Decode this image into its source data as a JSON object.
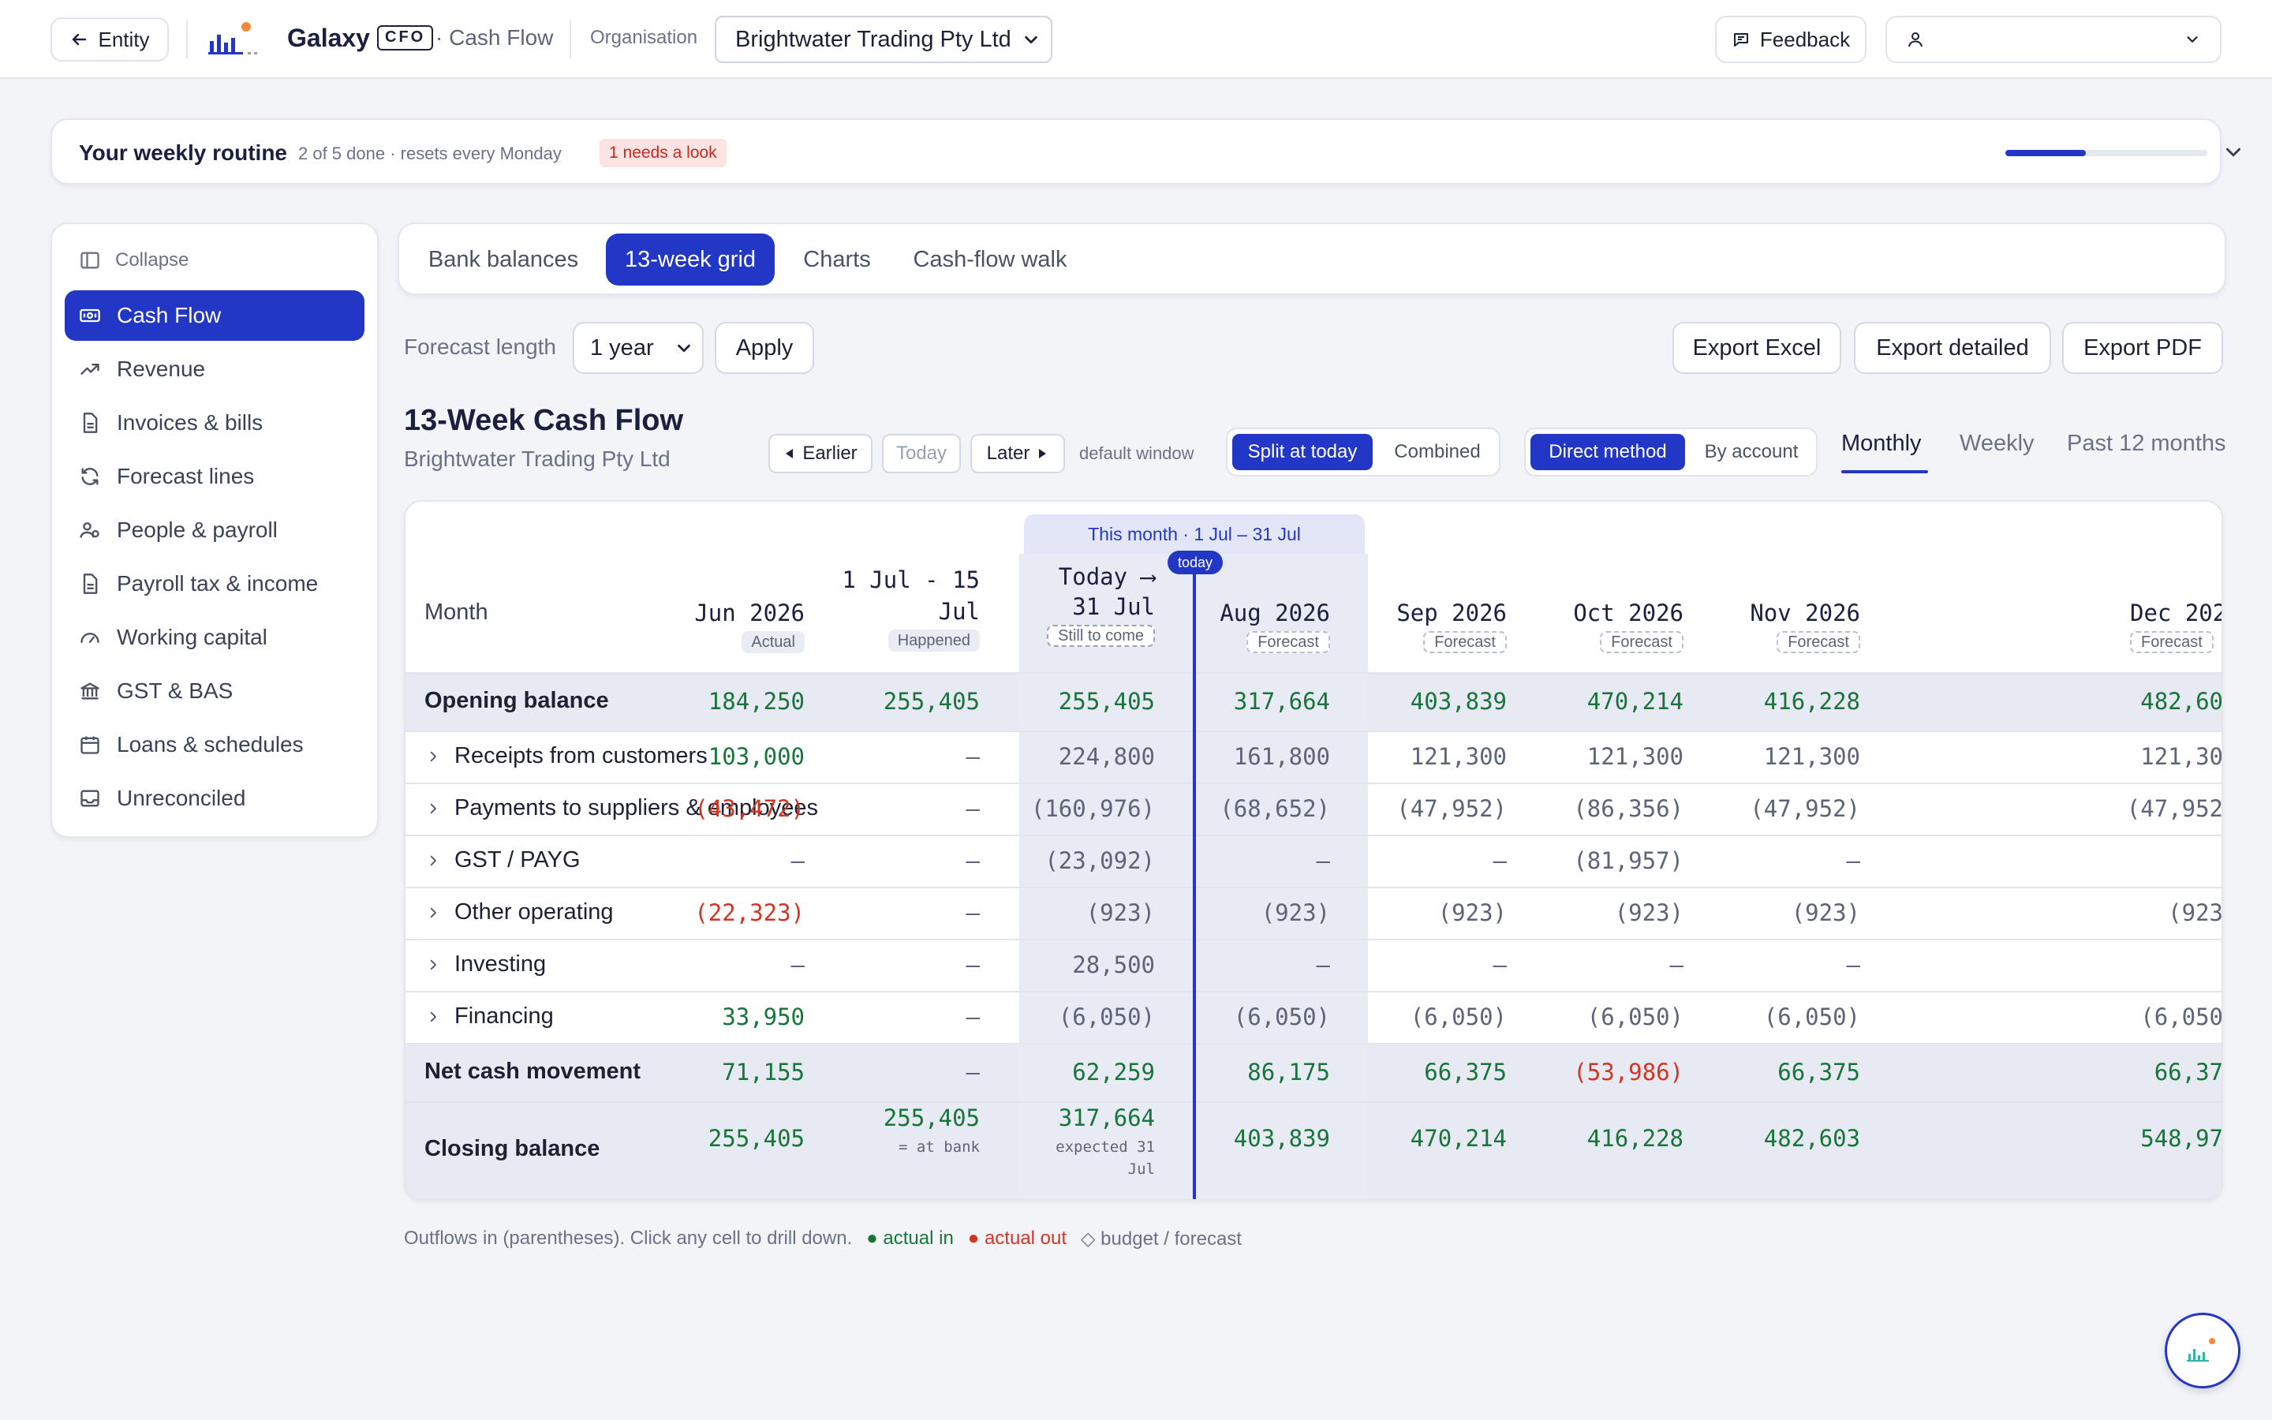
{
  "topbar": {
    "entity_label": "Entity",
    "brand": "Galaxy",
    "badge": "CFO",
    "crumb": "· Cash Flow",
    "org_label": "Organisation",
    "org_value": "Brightwater Trading Pty Ltd",
    "feedback_label": "Feedback"
  },
  "routine": {
    "title": "Your weekly routine",
    "subtitle": "2 of 5 done · resets every Monday",
    "badge": "1 needs a look",
    "progress_fraction": 0.4
  },
  "sidebar": {
    "collapse_label": "Collapse",
    "items": [
      {
        "label": "Cash Flow",
        "icon": "banknote-icon",
        "active": true
      },
      {
        "label": "Revenue",
        "icon": "trending-up-icon"
      },
      {
        "label": "Invoices & bills",
        "icon": "document-icon"
      },
      {
        "label": "Forecast lines",
        "icon": "refresh-icon"
      },
      {
        "label": "People & payroll",
        "icon": "people-icon"
      },
      {
        "label": "Payroll tax & income",
        "icon": "document-icon"
      },
      {
        "label": "Working capital",
        "icon": "gauge-icon"
      },
      {
        "label": "GST & BAS",
        "icon": "bank-icon"
      },
      {
        "label": "Loans & schedules",
        "icon": "calendar-icon"
      },
      {
        "label": "Unreconciled",
        "icon": "inbox-icon"
      }
    ]
  },
  "tabs": [
    {
      "label": "Bank balances"
    },
    {
      "label": "13-week grid",
      "active": true
    },
    {
      "label": "Charts"
    },
    {
      "label": "Cash-flow walk"
    }
  ],
  "forecast": {
    "label": "Forecast length",
    "value": "1 year",
    "apply_label": "Apply"
  },
  "exports": {
    "excel": "Export Excel",
    "detailed": "Export detailed",
    "pdf": "Export PDF"
  },
  "section": {
    "title": "13-Week Cash Flow",
    "subtitle": "Brightwater Trading Pty Ltd"
  },
  "nav": {
    "earlier": "Earlier",
    "today": "Today",
    "later": "Later",
    "default_window": "default window"
  },
  "toggles": {
    "split": "Split at today",
    "combined": "Combined",
    "direct": "Direct method",
    "by_account": "By account"
  },
  "periods": {
    "monthly": "Monthly",
    "weekly": "Weekly",
    "past12": "Past 12 months"
  },
  "grid": {
    "month_band": "This month · 1 Jul – 31 Jul",
    "today_pill": "today",
    "month_header": "Month",
    "columns": [
      {
        "line1": "Jun 2026",
        "tag": "Actual"
      },
      {
        "line1": "1 Jul - 15",
        "line2": "Jul",
        "tag": "Happened"
      },
      {
        "line1": "Today ⟶",
        "line2": "31 Jul",
        "tag": "Still to come"
      },
      {
        "line1": "Aug 2026",
        "tag": "Forecast"
      },
      {
        "line1": "Sep 2026",
        "tag": "Forecast"
      },
      {
        "line1": "Oct 2026",
        "tag": "Forecast"
      },
      {
        "line1": "Nov 2026",
        "tag": "Forecast"
      },
      {
        "line1": "Dec 202",
        "tag": "Forecast"
      }
    ],
    "rows": [
      {
        "label": "Opening balance",
        "kind": "total",
        "values": [
          "184,250",
          "255,405",
          "255,405",
          "317,664",
          "403,839",
          "470,214",
          "416,228",
          "482,60"
        ]
      },
      {
        "label": "Receipts from customers",
        "kind": "line",
        "values": [
          "103,000",
          "–",
          "224,800",
          "161,800",
          "121,300",
          "121,300",
          "121,300",
          "121,30"
        ]
      },
      {
        "label": "Payments to suppliers & employees",
        "kind": "line",
        "values": [
          "(43,472)",
          "–",
          "(160,976)",
          "(68,652)",
          "(47,952)",
          "(86,356)",
          "(47,952)",
          "(47,952"
        ]
      },
      {
        "label": "GST / PAYG",
        "kind": "line",
        "values": [
          "–",
          "–",
          "(23,092)",
          "–",
          "–",
          "(81,957)",
          "–",
          ""
        ]
      },
      {
        "label": "Other operating",
        "kind": "line",
        "values": [
          "(22,323)",
          "–",
          "(923)",
          "(923)",
          "(923)",
          "(923)",
          "(923)",
          "(923"
        ]
      },
      {
        "label": "Investing",
        "kind": "line",
        "values": [
          "–",
          "–",
          "28,500",
          "–",
          "–",
          "–",
          "–",
          ""
        ]
      },
      {
        "label": "Financing",
        "kind": "line",
        "values": [
          "33,950",
          "–",
          "(6,050)",
          "(6,050)",
          "(6,050)",
          "(6,050)",
          "(6,050)",
          "(6,050"
        ]
      },
      {
        "label": "Net cash movement",
        "kind": "total",
        "values": [
          "71,155",
          "–",
          "62,259",
          "86,175",
          "66,375",
          "(53,986)",
          "66,375",
          "66,37"
        ]
      },
      {
        "label": "Closing balance",
        "kind": "closing",
        "values": [
          "255,405",
          "255,405",
          "317,664",
          "403,839",
          "470,214",
          "416,228",
          "482,603",
          "548,97"
        ],
        "notes": [
          "",
          "= at bank",
          "expected 31 Jul",
          "",
          "",
          "",
          "",
          ""
        ]
      }
    ]
  },
  "legend": {
    "text": "Outflows in (parentheses). Click any cell to drill down.",
    "actual_in": "● actual in",
    "actual_out": "● actual out",
    "budget": "◇ budget / forecast"
  }
}
